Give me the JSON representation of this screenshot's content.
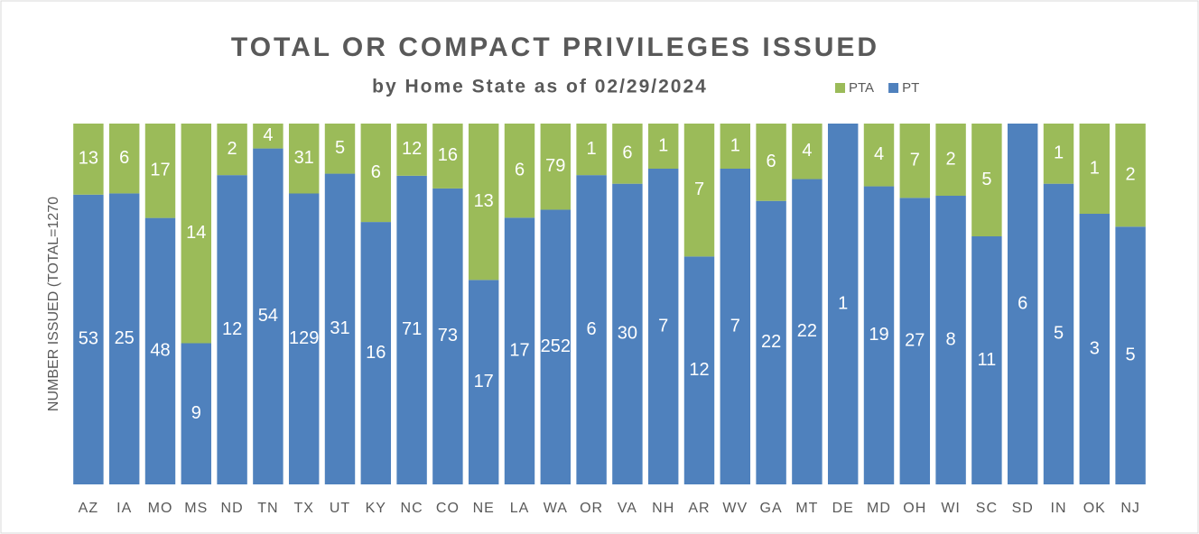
{
  "chart_data": {
    "type": "bar",
    "stacking": "percent",
    "title": "TOTAL OR COMPACT PRIVILEGES ISSUED",
    "subtitle": "by Home State as of 02/29/2024",
    "y_label": "NUMBER ISSUED (TOTAL=1270",
    "categories": [
      "AZ",
      "IA",
      "MO",
      "MS",
      "ND",
      "TN",
      "TX",
      "UT",
      "KY",
      "NC",
      "CO",
      "NE",
      "LA",
      "WA",
      "OR",
      "VA",
      "NH",
      "AR",
      "WV",
      "GA",
      "MT",
      "DE",
      "MD",
      "OH",
      "WI",
      "SC",
      "SD",
      "IN",
      "OK",
      "NJ"
    ],
    "series": [
      {
        "name": "PT",
        "color": "#4f81bd",
        "values": [
          53,
          25,
          48,
          9,
          12,
          54,
          129,
          31,
          16,
          71,
          73,
          17,
          17,
          252,
          6,
          30,
          7,
          12,
          7,
          22,
          22,
          1,
          19,
          27,
          8,
          11,
          6,
          5,
          3,
          5
        ]
      },
      {
        "name": "PTA",
        "color": "#9bbb59",
        "values": [
          13,
          6,
          17,
          14,
          2,
          4,
          31,
          5,
          6,
          12,
          16,
          13,
          6,
          79,
          1,
          6,
          1,
          7,
          1,
          6,
          4,
          0,
          4,
          7,
          2,
          5,
          0,
          1,
          1,
          2
        ]
      }
    ],
    "legend": "top-right"
  }
}
